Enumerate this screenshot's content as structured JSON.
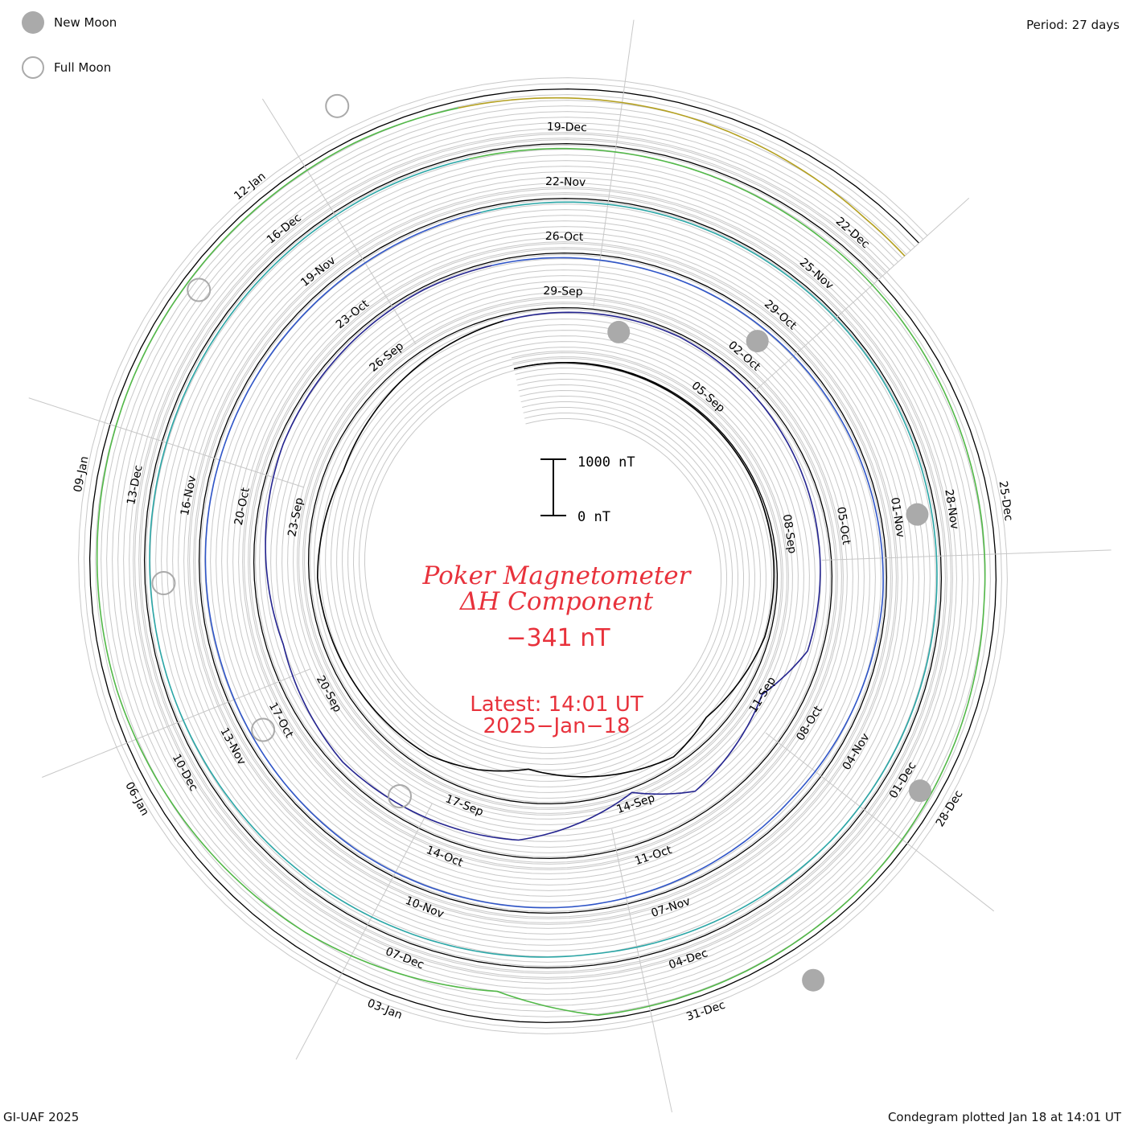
{
  "legend": {
    "new_moon_label": "New Moon",
    "full_moon_label": "Full Moon",
    "new_moon_color": "#aaaaaa",
    "full_moon_color": "#aaaaaa"
  },
  "header": {
    "period_text": "Period: 27 days"
  },
  "footer": {
    "credit": "GI-UAF 2025",
    "plotted": "Condegram plotted Jan 18 at 14:01 UT"
  },
  "center": {
    "title_line1": "Poker Magnetometer",
    "title_line2": "ΔH Component",
    "current_value": "−341 nT",
    "latest_line1": "Latest: 14:01 UT",
    "latest_line2": "2025−Jan−18",
    "text_color": "#e8323c",
    "scale_top_label": "1000 nT",
    "scale_bottom_label": "0 nT"
  },
  "chart_data": {
    "type": "line",
    "plot_style": "condegram-spiral",
    "period_days": 27,
    "start_date": "2024-09-01",
    "end_date": "2025-01-18",
    "scale_bar_nT": 1000,
    "rotations": [
      {
        "start": "2024-09-01",
        "color": "#000000"
      },
      {
        "start": "2024-09-28",
        "color": "#23238f"
      },
      {
        "start": "2024-10-25",
        "color": "#2f55c8"
      },
      {
        "start": "2024-11-21",
        "color": "#2aa6a6"
      },
      {
        "start": "2024-12-18",
        "color": "#52b848"
      },
      {
        "start": "2025-01-14",
        "color": "#b4a020"
      }
    ],
    "date_labels": [
      {
        "label": "05-Sep",
        "date": "2024-09-05"
      },
      {
        "label": "08-Sep",
        "date": "2024-09-08"
      },
      {
        "label": "11-Sep",
        "date": "2024-09-11"
      },
      {
        "label": "14-Sep",
        "date": "2024-09-14"
      },
      {
        "label": "17-Sep",
        "date": "2024-09-17"
      },
      {
        "label": "20-Sep",
        "date": "2024-09-20"
      },
      {
        "label": "23-Sep",
        "date": "2024-09-23"
      },
      {
        "label": "26-Sep",
        "date": "2024-09-26"
      },
      {
        "label": "29-Sep",
        "date": "2024-09-29"
      },
      {
        "label": "02-Oct",
        "date": "2024-10-02"
      },
      {
        "label": "05-Oct",
        "date": "2024-10-05"
      },
      {
        "label": "08-Oct",
        "date": "2024-10-08"
      },
      {
        "label": "11-Oct",
        "date": "2024-10-11"
      },
      {
        "label": "14-Oct",
        "date": "2024-10-14"
      },
      {
        "label": "17-Oct",
        "date": "2024-10-17"
      },
      {
        "label": "20-Oct",
        "date": "2024-10-20"
      },
      {
        "label": "23-Oct",
        "date": "2024-10-23"
      },
      {
        "label": "26-Oct",
        "date": "2024-10-26"
      },
      {
        "label": "29-Oct",
        "date": "2024-10-29"
      },
      {
        "label": "01-Nov",
        "date": "2024-11-01"
      },
      {
        "label": "04-Nov",
        "date": "2024-11-04"
      },
      {
        "label": "07-Nov",
        "date": "2024-11-07"
      },
      {
        "label": "10-Nov",
        "date": "2024-11-10"
      },
      {
        "label": "13-Nov",
        "date": "2024-11-13"
      },
      {
        "label": "16-Nov",
        "date": "2024-11-16"
      },
      {
        "label": "19-Nov",
        "date": "2024-11-19"
      },
      {
        "label": "22-Nov",
        "date": "2024-11-22"
      },
      {
        "label": "25-Nov",
        "date": "2024-11-25"
      },
      {
        "label": "28-Nov",
        "date": "2024-11-28"
      },
      {
        "label": "01-Dec",
        "date": "2024-12-01"
      },
      {
        "label": "04-Dec",
        "date": "2024-12-04"
      },
      {
        "label": "07-Dec",
        "date": "2024-12-07"
      },
      {
        "label": "10-Dec",
        "date": "2024-12-10"
      },
      {
        "label": "13-Dec",
        "date": "2024-12-13"
      },
      {
        "label": "16-Dec",
        "date": "2024-12-16"
      },
      {
        "label": "19-Dec",
        "date": "2024-12-19"
      },
      {
        "label": "22-Dec",
        "date": "2024-12-22"
      },
      {
        "label": "25-Dec",
        "date": "2024-12-25"
      },
      {
        "label": "28-Dec",
        "date": "2024-12-28"
      },
      {
        "label": "31-Dec",
        "date": "2024-12-31"
      },
      {
        "label": "03-Jan",
        "date": "2025-01-03"
      },
      {
        "label": "06-Jan",
        "date": "2025-01-06"
      },
      {
        "label": "09-Jan",
        "date": "2025-01-09"
      },
      {
        "label": "12-Jan",
        "date": "2025-01-12"
      }
    ],
    "new_moons": [
      "2024-09-03",
      "2024-10-02",
      "2024-11-01",
      "2024-12-01",
      "2024-12-30"
    ],
    "full_moons": [
      "2024-09-18",
      "2024-10-17",
      "2024-11-15",
      "2024-12-15",
      "2025-01-13"
    ],
    "series": [
      {
        "x": [
          "2024-09-01",
          "2024-09-04",
          "2024-09-07",
          "2024-09-10",
          "2024-09-12",
          "2024-09-13",
          "2024-09-16",
          "2024-09-17",
          "2024-09-18",
          "2024-09-20",
          "2024-09-22",
          "2024-09-24",
          "2024-09-26",
          "2024-09-28",
          "2024-10-01",
          "2024-10-04",
          "2024-10-07",
          "2024-10-08",
          "2024-10-10",
          "2024-10-11",
          "2024-10-13",
          "2024-10-16",
          "2024-10-18",
          "2024-10-21",
          "2024-10-24",
          "2024-10-27",
          "2024-10-30",
          "2024-11-02",
          "2024-11-05",
          "2024-11-08",
          "2024-11-11",
          "2024-11-14",
          "2024-11-17",
          "2024-11-20",
          "2024-11-23",
          "2024-11-26",
          "2024-11-29",
          "2024-12-02",
          "2024-12-05",
          "2024-12-08",
          "2024-12-11",
          "2024-12-14",
          "2024-12-17",
          "2024-12-20",
          "2024-12-23",
          "2024-12-26",
          "2024-12-29",
          "2025-01-01",
          "2025-01-02",
          "2025-01-04",
          "2025-01-07",
          "2025-01-10",
          "2025-01-13",
          "2025-01-16",
          "2025-01-18"
        ],
        "values": [
          0,
          -20,
          -30,
          -80,
          -300,
          -150,
          -600,
          -400,
          -250,
          -200,
          -150,
          -300,
          -200,
          -100,
          -50,
          -150,
          -250,
          -700,
          -400,
          -900,
          -300,
          -150,
          -300,
          -100,
          -50,
          -100,
          -80,
          -60,
          -150,
          -100,
          -80,
          -120,
          -100,
          -80,
          -60,
          -50,
          -80,
          -100,
          -200,
          -150,
          -100,
          -80,
          -60,
          -100,
          -150,
          -200,
          -100,
          -80,
          -500,
          -300,
          -150,
          -100,
          -80,
          -200,
          -341
        ]
      }
    ]
  }
}
